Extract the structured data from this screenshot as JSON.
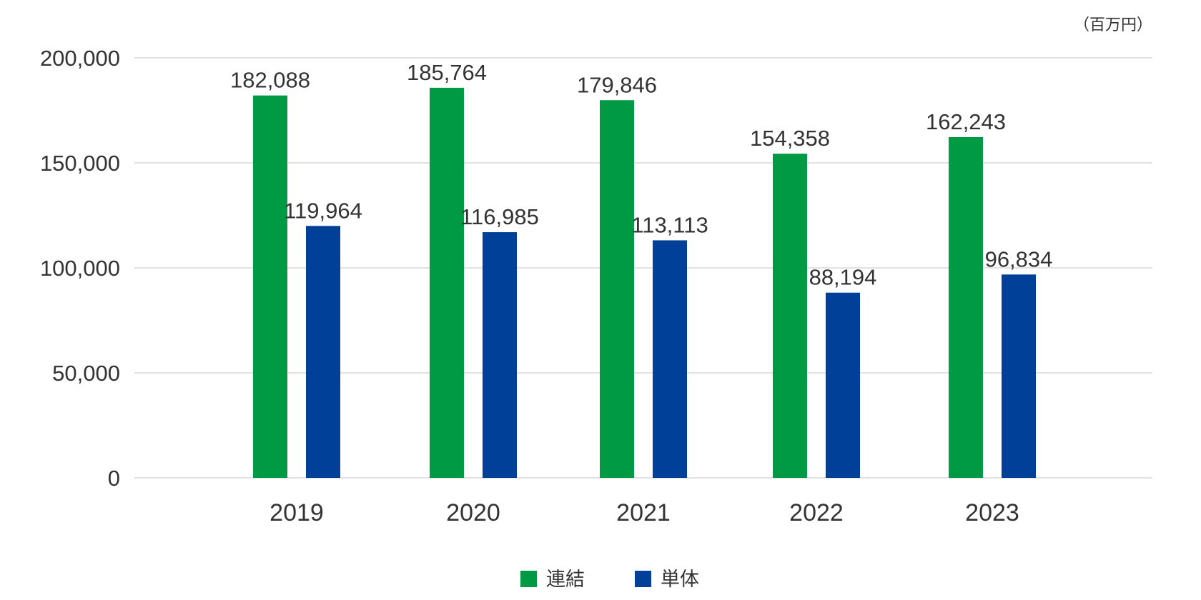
{
  "chart_data": {
    "type": "bar",
    "unit_label": "（百万円）",
    "categories": [
      "2019",
      "2020",
      "2021",
      "2022",
      "2023"
    ],
    "series": [
      {
        "name": "連結",
        "color": "#009944",
        "values": [
          182088,
          185764,
          179846,
          154358,
          162243
        ],
        "labels": [
          "182,088",
          "185,764",
          "179,846",
          "154,358",
          "162,243"
        ]
      },
      {
        "name": "単体",
        "color": "#004098",
        "values": [
          119964,
          116985,
          113113,
          88194,
          96834
        ],
        "labels": [
          "119,964",
          "116,985",
          "113,113",
          "88,194",
          "96,834"
        ]
      }
    ],
    "yticks": [
      0,
      50000,
      100000,
      150000,
      200000
    ],
    "ytick_labels": [
      "0",
      "50,000",
      "100,000",
      "150,000",
      "200,000"
    ],
    "ylim": [
      0,
      200000
    ],
    "grid": true,
    "legend_position": "bottom-center",
    "colors": {
      "gridline": "#d9d9d9",
      "text": "#333333"
    }
  }
}
